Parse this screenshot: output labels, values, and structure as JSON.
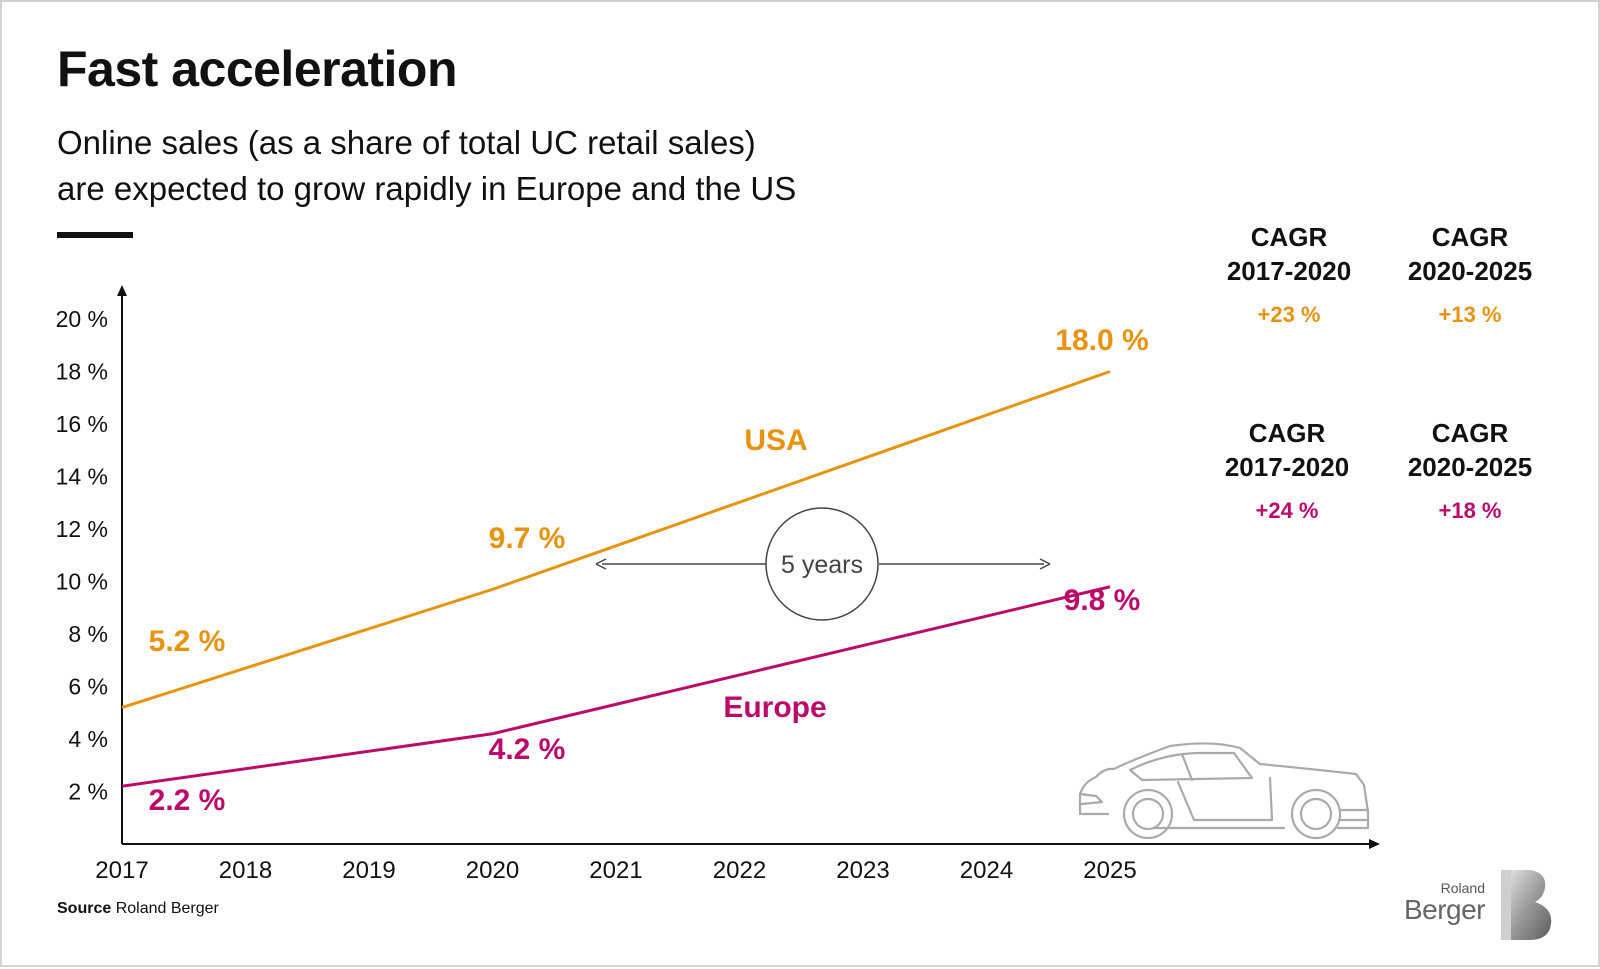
{
  "title": "Fast acceleration",
  "subtitle_line1": "Online sales (as a share of total UC retail sales)",
  "subtitle_line2": "are expected to grow rapidly in Europe and the US",
  "colors": {
    "usa": "#e8930e",
    "europe": "#bb0a6a",
    "axis": "#111111",
    "car": "#aaaaaa"
  },
  "chart_data": {
    "type": "line",
    "x": [
      2017,
      2018,
      2019,
      2020,
      2021,
      2022,
      2023,
      2024,
      2025
    ],
    "x_tick_labels": [
      "2017",
      "2018",
      "2019",
      "2020",
      "2021",
      "2022",
      "2023",
      "2024",
      "2025"
    ],
    "y_tick_labels": [
      "2 %",
      "4 %",
      "6 %",
      "8 %",
      "10 %",
      "12 %",
      "14 %",
      "16 %",
      "18 %",
      "20 %"
    ],
    "ylim": [
      0,
      20
    ],
    "grid": false,
    "series": [
      {
        "name": "USA",
        "points": [
          [
            2017,
            5.2
          ],
          [
            2020,
            9.7
          ],
          [
            2025,
            18.0
          ]
        ],
        "labels": [
          "5.2 %",
          "9.7 %",
          "18.0 %"
        ]
      },
      {
        "name": "Europe",
        "points": [
          [
            2017,
            2.2
          ],
          [
            2020,
            4.2
          ],
          [
            2025,
            9.8
          ]
        ],
        "labels": [
          "2.2 %",
          "4.2 %",
          "9.8 %"
        ]
      }
    ],
    "annotation": "5 years"
  },
  "cagr": {
    "usa": [
      {
        "heading1": "CAGR",
        "heading2": "2017-2020",
        "value": "+23 %"
      },
      {
        "heading1": "CAGR",
        "heading2": "2020-2025",
        "value": "+13 %"
      }
    ],
    "europe": [
      {
        "heading1": "CAGR",
        "heading2": "2017-2020",
        "value": "+24 %"
      },
      {
        "heading1": "CAGR",
        "heading2": "2020-2025",
        "value": "+18 %"
      }
    ]
  },
  "source_label": "Source",
  "source_text": "Roland Berger",
  "logo": {
    "line1": "Roland",
    "line2": "Berger"
  }
}
